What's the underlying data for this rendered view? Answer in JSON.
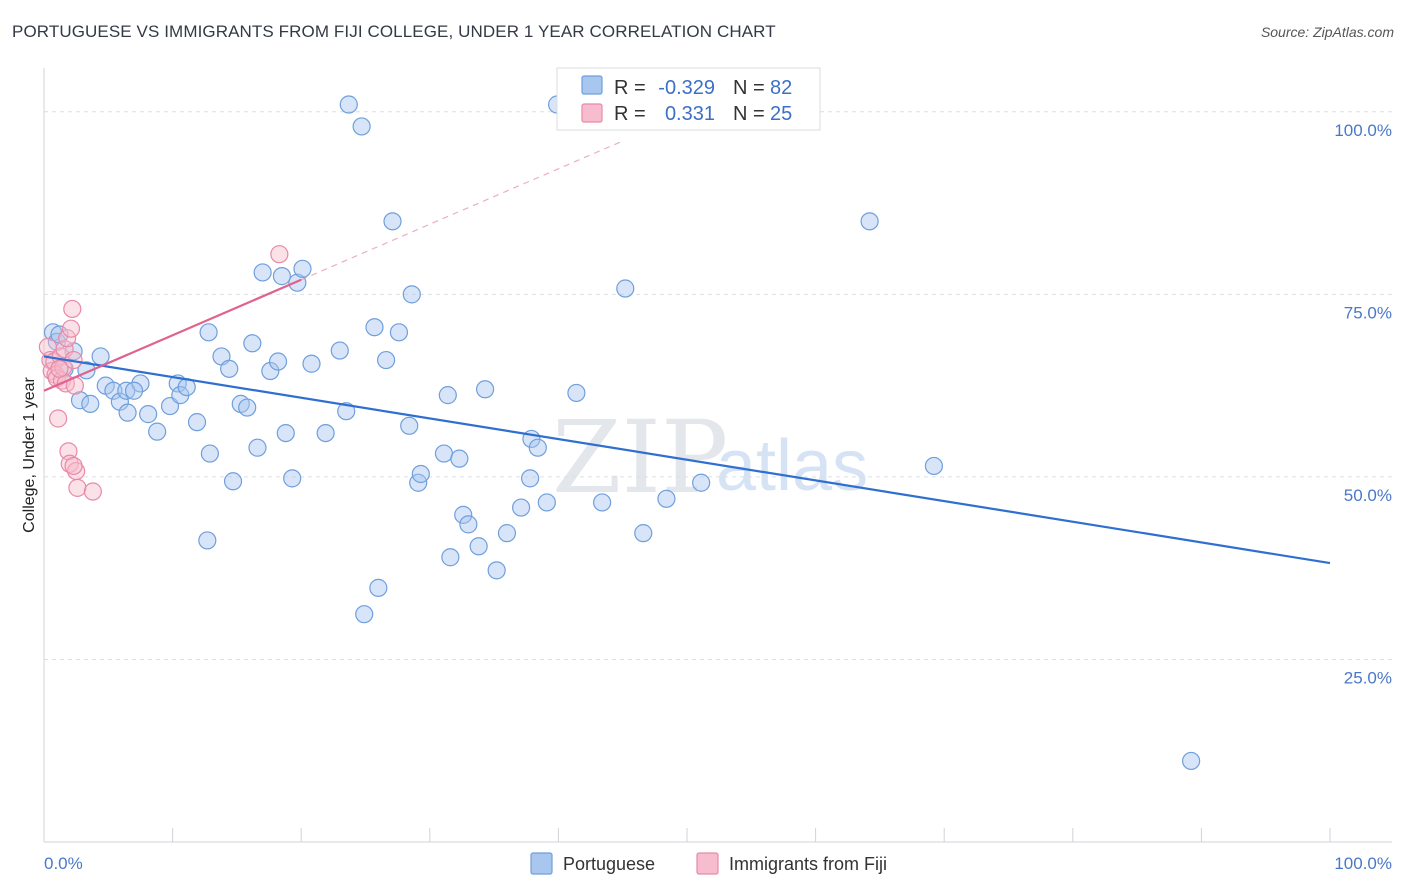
{
  "header": {
    "title": "PORTUGUESE VS IMMIGRANTS FROM FIJI COLLEGE, UNDER 1 YEAR CORRELATION CHART",
    "source": "Source: ZipAtlas.com"
  },
  "watermark": {
    "zip": "ZIP",
    "atlas": "atlas"
  },
  "chart_data": {
    "type": "scatter",
    "title": "PORTUGUESE VS IMMIGRANTS FROM FIJI COLLEGE, UNDER 1 YEAR CORRELATION CHART",
    "xlabel": "",
    "ylabel": "College, Under 1 year",
    "xlim": [
      0,
      100
    ],
    "ylim": [
      0,
      106
    ],
    "x_tick_labels": [
      "0.0%",
      "100.0%"
    ],
    "y_ticks": [
      25,
      50,
      75,
      100
    ],
    "y_tick_labels": [
      "25.0%",
      "50.0%",
      "75.0%",
      "100.0%"
    ],
    "grid": true,
    "legend_position": "top-center",
    "colors": {
      "portuguese": "#a9c6ef",
      "portuguese_edge": "#6f9fdc",
      "portuguese_line": "#2f6fd0",
      "fiji": "#f7bccd",
      "fiji_edge": "#e88aa8",
      "fiji_line": "#e0628f"
    },
    "stats": [
      {
        "r_label": "R =",
        "r_value": "-0.329",
        "n_label": "N =",
        "n_value": "82"
      },
      {
        "r_label": "R =",
        "r_value": "0.331",
        "n_label": "N =",
        "n_value": "25"
      }
    ],
    "series": [
      {
        "name": "Portuguese",
        "trend": {
          "x": [
            0,
            100
          ],
          "y": [
            66.5,
            38.2
          ]
        },
        "points": [
          [
            0.7,
            69.8
          ],
          [
            1.0,
            68.5
          ],
          [
            1.2,
            69.5
          ],
          [
            2.3,
            67.2
          ],
          [
            1.6,
            64.8
          ],
          [
            3.3,
            64.6
          ],
          [
            4.4,
            66.5
          ],
          [
            2.8,
            60.5
          ],
          [
            3.6,
            60.0
          ],
          [
            4.8,
            62.5
          ],
          [
            5.4,
            61.8
          ],
          [
            5.9,
            60.3
          ],
          [
            6.5,
            58.8
          ],
          [
            6.4,
            61.8
          ],
          [
            7.5,
            62.8
          ],
          [
            7.0,
            61.8
          ],
          [
            8.1,
            58.6
          ],
          [
            8.8,
            56.2
          ],
          [
            9.8,
            59.7
          ],
          [
            10.4,
            62.8
          ],
          [
            10.6,
            61.2
          ],
          [
            11.1,
            62.3
          ],
          [
            11.9,
            57.5
          ],
          [
            12.9,
            53.2
          ],
          [
            12.7,
            41.3
          ],
          [
            12.8,
            69.8
          ],
          [
            13.8,
            66.5
          ],
          [
            14.4,
            64.8
          ],
          [
            14.7,
            49.4
          ],
          [
            15.3,
            60.0
          ],
          [
            15.8,
            59.5
          ],
          [
            16.2,
            68.3
          ],
          [
            16.6,
            54.0
          ],
          [
            17.0,
            78.0
          ],
          [
            17.6,
            64.5
          ],
          [
            18.2,
            65.8
          ],
          [
            18.8,
            56.0
          ],
          [
            19.3,
            49.8
          ],
          [
            19.7,
            76.6
          ],
          [
            20.1,
            78.5
          ],
          [
            20.8,
            65.5
          ],
          [
            21.9,
            56.0
          ],
          [
            23.0,
            67.3
          ],
          [
            23.5,
            59.0
          ],
          [
            23.7,
            101.0
          ],
          [
            24.7,
            98.0
          ],
          [
            24.9,
            31.2
          ],
          [
            25.7,
            70.5
          ],
          [
            26.0,
            34.8
          ],
          [
            26.6,
            66.0
          ],
          [
            27.1,
            85.0
          ],
          [
            27.6,
            69.8
          ],
          [
            28.6,
            75.0
          ],
          [
            28.4,
            57.0
          ],
          [
            29.1,
            49.2
          ],
          [
            29.3,
            50.4
          ],
          [
            31.1,
            53.2
          ],
          [
            31.4,
            61.2
          ],
          [
            31.6,
            39.0
          ],
          [
            32.3,
            52.5
          ],
          [
            32.6,
            44.8
          ],
          [
            33.0,
            43.5
          ],
          [
            33.8,
            40.5
          ],
          [
            34.3,
            62.0
          ],
          [
            35.2,
            37.2
          ],
          [
            36.0,
            42.3
          ],
          [
            37.1,
            45.8
          ],
          [
            37.8,
            49.8
          ],
          [
            37.9,
            55.2
          ],
          [
            38.4,
            54.0
          ],
          [
            39.1,
            46.5
          ],
          [
            39.9,
            101.0
          ],
          [
            41.4,
            61.5
          ],
          [
            43.4,
            46.5
          ],
          [
            45.2,
            75.8
          ],
          [
            46.6,
            42.3
          ],
          [
            48.4,
            47.0
          ],
          [
            51.1,
            49.2
          ],
          [
            64.2,
            85.0
          ],
          [
            69.2,
            51.5
          ],
          [
            89.2,
            11.1
          ],
          [
            18.5,
            77.5
          ]
        ]
      },
      {
        "name": "Immigrants from Fiji",
        "trend": {
          "x": [
            0,
            20
          ],
          "y": [
            61.8,
            77.0
          ]
        },
        "trend_extended": {
          "x": [
            20,
            45
          ],
          "y": [
            77.0,
            96.0
          ]
        },
        "points": [
          [
            0.3,
            67.8
          ],
          [
            0.5,
            66.0
          ],
          [
            0.6,
            64.5
          ],
          [
            0.8,
            65.8
          ],
          [
            0.9,
            64.0
          ],
          [
            1.0,
            63.5
          ],
          [
            1.1,
            58.0
          ],
          [
            1.3,
            66.5
          ],
          [
            1.4,
            63.2
          ],
          [
            1.5,
            65.0
          ],
          [
            1.6,
            67.5
          ],
          [
            1.7,
            62.8
          ],
          [
            1.8,
            69.0
          ],
          [
            1.9,
            53.5
          ],
          [
            2.0,
            51.8
          ],
          [
            2.1,
            70.3
          ],
          [
            2.2,
            73.0
          ],
          [
            2.3,
            66.0
          ],
          [
            2.4,
            62.5
          ],
          [
            2.5,
            50.8
          ],
          [
            2.3,
            51.5
          ],
          [
            2.6,
            48.5
          ],
          [
            3.8,
            48.0
          ],
          [
            18.3,
            80.5
          ],
          [
            1.2,
            64.8
          ]
        ]
      }
    ]
  }
}
